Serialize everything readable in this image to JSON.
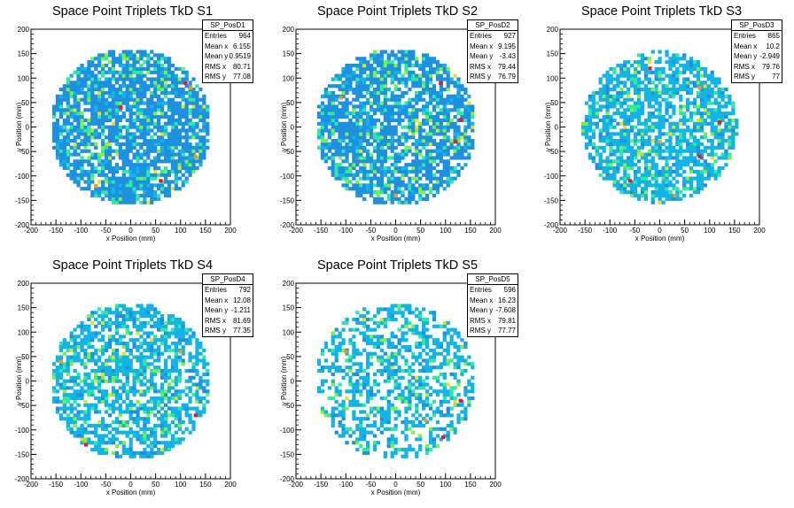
{
  "colors": {
    "palette": [
      "#1e90e0",
      "#12b4e6",
      "#2ee8a4",
      "#7cf23e",
      "#e6e020",
      "#f09a1a",
      "#e41c1c"
    ],
    "frame": "#000000",
    "background": "#ffffff"
  },
  "chart_data": [
    {
      "type": "heatmap",
      "title": "Space Point Triplets TkD S1",
      "xlabel": "x Position (mm)",
      "ylabel": "y Position (mm)",
      "xlim": [
        -200,
        200
      ],
      "ylim": [
        -200,
        200
      ],
      "x_ticks": [
        "-200",
        "-150",
        "-100",
        "-50",
        "0",
        "50",
        "100",
        "150",
        "200"
      ],
      "y_ticks": [
        "-200",
        "-150",
        "-100",
        "-50",
        "0",
        "50",
        "100",
        "150",
        "200"
      ],
      "bin_width_mm": 7,
      "occupied_radius_mm": 160,
      "dominant_color_index": 0,
      "hot_bins": [
        [
          110,
          90
        ],
        [
          120,
          80
        ],
        [
          -20,
          40
        ],
        [
          130,
          -60
        ],
        [
          60,
          -110
        ],
        [
          -70,
          -120
        ]
      ],
      "stats": {
        "name": "SP_PosD1",
        "rows": [
          {
            "label": "Entries",
            "value": "964"
          },
          {
            "label": "Mean x",
            "value": "6.155"
          },
          {
            "label": "Mean y",
            "value": "0.9519"
          },
          {
            "label": "RMS x",
            "value": "80.71"
          },
          {
            "label": "RMS y",
            "value": "77.08"
          }
        ]
      }
    },
    {
      "type": "heatmap",
      "title": "Space Point Triplets TkD S2",
      "xlabel": "x Position (mm)",
      "ylabel": "y Position (mm)",
      "xlim": [
        -200,
        200
      ],
      "ylim": [
        -200,
        200
      ],
      "x_ticks": [
        "-200",
        "-150",
        "-100",
        "-50",
        "0",
        "50",
        "100",
        "150",
        "200"
      ],
      "y_ticks": [
        "-200",
        "-150",
        "-100",
        "-50",
        "0",
        "50",
        "100",
        "150",
        "200"
      ],
      "bin_width_mm": 7,
      "occupied_radius_mm": 160,
      "dominant_color_index": 0,
      "hot_bins": [
        [
          130,
          15
        ],
        [
          0,
          -140
        ],
        [
          120,
          -30
        ],
        [
          -110,
          60
        ],
        [
          90,
          90
        ]
      ],
      "stats": {
        "name": "SP_PosD2",
        "rows": [
          {
            "label": "Entries",
            "value": "927"
          },
          {
            "label": "Mean x",
            "value": "9.195"
          },
          {
            "label": "Mean y",
            "value": "-3.43"
          },
          {
            "label": "RMS x",
            "value": "79.44"
          },
          {
            "label": "RMS y",
            "value": "76.79"
          }
        ]
      }
    },
    {
      "type": "heatmap",
      "title": "Space Point Triplets TkD S3",
      "xlabel": "x Position (mm)",
      "ylabel": "y Position (mm)",
      "xlim": [
        -200,
        200
      ],
      "ylim": [
        -200,
        200
      ],
      "x_ticks": [
        "-200",
        "-150",
        "-100",
        "-50",
        "0",
        "50",
        "100",
        "150",
        "200"
      ],
      "y_ticks": [
        "-200",
        "-150",
        "-100",
        "-50",
        "0",
        "50",
        "100",
        "150",
        "200"
      ],
      "bin_width_mm": 7,
      "occupied_radius_mm": 155,
      "dominant_color_index": 1,
      "hot_bins": [
        [
          -20,
          120
        ],
        [
          80,
          80
        ],
        [
          120,
          10
        ],
        [
          0,
          -30
        ],
        [
          -60,
          -110
        ],
        [
          30,
          -140
        ],
        [
          80,
          -60
        ]
      ],
      "stats": {
        "name": "SP_PosD3",
        "rows": [
          {
            "label": "Entries",
            "value": "865"
          },
          {
            "label": "Mean x",
            "value": "10.2"
          },
          {
            "label": "Mean y",
            "value": "-2.949"
          },
          {
            "label": "RMS x",
            "value": "79.76"
          },
          {
            "label": "RMS y",
            "value": "77"
          }
        ]
      }
    },
    {
      "type": "heatmap",
      "title": "Space Point Triplets TkD S4",
      "xlabel": "x Position (mm)",
      "ylabel": "y Position (mm)",
      "xlim": [
        -200,
        200
      ],
      "ylim": [
        -200,
        200
      ],
      "x_ticks": [
        "-200",
        "-150",
        "-100",
        "-50",
        "0",
        "50",
        "100",
        "150",
        "200"
      ],
      "y_ticks": [
        "-200",
        "-150",
        "-100",
        "-50",
        "0",
        "50",
        "100",
        "150",
        "200"
      ],
      "bin_width_mm": 7,
      "occupied_radius_mm": 160,
      "dominant_color_index": 1,
      "hot_bins": [
        [
          130,
          -70
        ],
        [
          -140,
          40
        ],
        [
          -90,
          -130
        ],
        [
          100,
          60
        ]
      ],
      "stats": {
        "name": "SP_PosD4",
        "rows": [
          {
            "label": "Entries",
            "value": "792"
          },
          {
            "label": "Mean x",
            "value": "12.08"
          },
          {
            "label": "Mean y",
            "value": "-1.211"
          },
          {
            "label": "RMS x",
            "value": "81.69"
          },
          {
            "label": "RMS y",
            "value": "77.35"
          }
        ]
      }
    },
    {
      "type": "heatmap",
      "title": "Space Point Triplets TkD S5",
      "xlabel": "x Position (mm)",
      "ylabel": "y Position (mm)",
      "xlim": [
        -200,
        200
      ],
      "ylim": [
        -200,
        200
      ],
      "x_ticks": [
        "-200",
        "-150",
        "-100",
        "-50",
        "0",
        "50",
        "100",
        "150",
        "200"
      ],
      "y_ticks": [
        "-200",
        "-150",
        "-100",
        "-50",
        "0",
        "50",
        "100",
        "150",
        "200"
      ],
      "bin_width_mm": 7,
      "occupied_radius_mm": 160,
      "dominant_color_index": 1,
      "hot_bins": [
        [
          95,
          -115
        ],
        [
          -100,
          60
        ],
        [
          130,
          -40
        ],
        [
          60,
          -80
        ]
      ],
      "stats": {
        "name": "SP_PosD5",
        "rows": [
          {
            "label": "Entries",
            "value": "596"
          },
          {
            "label": "Mean x",
            "value": "16.23"
          },
          {
            "label": "Mean y",
            "value": "-7.608"
          },
          {
            "label": "RMS x",
            "value": "79.81"
          },
          {
            "label": "RMS y",
            "value": "77.77"
          }
        ]
      }
    }
  ]
}
